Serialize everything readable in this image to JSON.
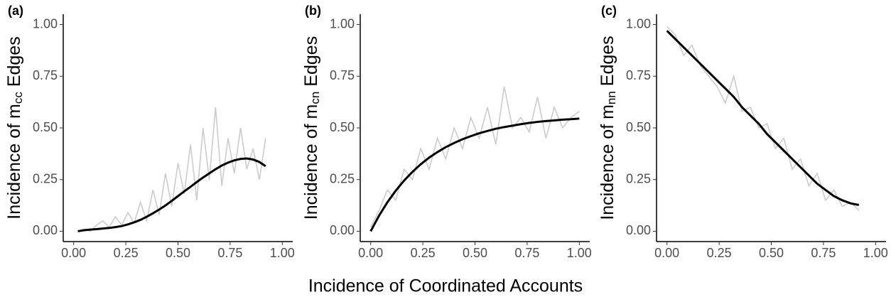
{
  "xlabel": "Incidence of Coordinated Accounts",
  "chart_data": [
    {
      "type": "line",
      "tag": "(a)",
      "ylabel": [
        "Incidence of m",
        "cc",
        " Edges"
      ],
      "xlim": [
        -0.05,
        1.05
      ],
      "ylim": [
        -0.05,
        1.05
      ],
      "xticks": [
        {
          "value": 0,
          "label": "0.00"
        },
        0.25,
        {
          "value": 0.5,
          "label": "0.50"
        },
        0.75,
        {
          "value": 1,
          "label": "1.00"
        }
      ],
      "yticks": [
        {
          "value": 0,
          "label": "0.00"
        },
        0.25,
        {
          "value": 0.5,
          "label": "0.50"
        },
        0.75,
        {
          "value": 1,
          "label": "1.00"
        }
      ],
      "x": [
        0.02,
        0.05,
        0.08,
        0.11,
        0.14,
        0.17,
        0.2,
        0.23,
        0.26,
        0.29,
        0.32,
        0.35,
        0.38,
        0.41,
        0.44,
        0.47,
        0.5,
        0.53,
        0.56,
        0.59,
        0.62,
        0.65,
        0.68,
        0.71,
        0.74,
        0.77,
        0.8,
        0.83,
        0.86,
        0.89,
        0.92
      ],
      "series": [
        {
          "color": "#cccccc",
          "values": [
            0,
            0.01,
            0,
            0.03,
            0.05,
            0.02,
            0.07,
            0.03,
            0.09,
            0.04,
            0.14,
            0.05,
            0.2,
            0.08,
            0.28,
            0.12,
            0.33,
            0.18,
            0.42,
            0.15,
            0.5,
            0.25,
            0.6,
            0.22,
            0.45,
            0.28,
            0.5,
            0.3,
            0.4,
            0.25,
            0.45
          ]
        },
        {
          "color": "#000000",
          "values": [
            0,
            0.005,
            0.008,
            0.01,
            0.013,
            0.016,
            0.02,
            0.025,
            0.033,
            0.043,
            0.055,
            0.07,
            0.087,
            0.105,
            0.125,
            0.147,
            0.17,
            0.193,
            0.215,
            0.238,
            0.26,
            0.28,
            0.3,
            0.318,
            0.332,
            0.343,
            0.35,
            0.352,
            0.347,
            0.335,
            0.315
          ]
        }
      ]
    },
    {
      "type": "line",
      "tag": "(b)",
      "ylabel": [
        "Incidence of m",
        "cn",
        " Edges"
      ],
      "xlim": [
        -0.05,
        1.05
      ],
      "ylim": [
        -0.05,
        1.05
      ],
      "xticks": [
        {
          "value": 0,
          "label": "0.00"
        },
        0.25,
        {
          "value": 0.5,
          "label": "0.50"
        },
        0.75,
        {
          "value": 1,
          "label": "1.00"
        }
      ],
      "yticks": [
        {
          "value": 0,
          "label": "0.00"
        },
        0.25,
        {
          "value": 0.5,
          "label": "0.50"
        },
        0.75,
        {
          "value": 1,
          "label": "1.00"
        }
      ],
      "x": [
        0,
        0.04,
        0.08,
        0.12,
        0.16,
        0.2,
        0.24,
        0.28,
        0.32,
        0.36,
        0.4,
        0.44,
        0.48,
        0.52,
        0.56,
        0.6,
        0.64,
        0.68,
        0.72,
        0.76,
        0.8,
        0.84,
        0.88,
        0.92,
        0.96,
        1
      ],
      "series": [
        {
          "color": "#cccccc",
          "values": [
            0.02,
            0.1,
            0.2,
            0.15,
            0.3,
            0.25,
            0.4,
            0.3,
            0.45,
            0.35,
            0.5,
            0.4,
            0.55,
            0.45,
            0.6,
            0.42,
            0.7,
            0.5,
            0.55,
            0.48,
            0.65,
            0.45,
            0.6,
            0.5,
            0.55,
            0.58
          ]
        },
        {
          "color": "#000000",
          "values": [
            0,
            0.075,
            0.14,
            0.196,
            0.245,
            0.287,
            0.324,
            0.356,
            0.383,
            0.407,
            0.427,
            0.445,
            0.46,
            0.474,
            0.485,
            0.496,
            0.504,
            0.511,
            0.518,
            0.524,
            0.529,
            0.533,
            0.536,
            0.54,
            0.542,
            0.545
          ]
        }
      ]
    },
    {
      "type": "line",
      "tag": "(c)",
      "ylabel": [
        "Incidence of m",
        "nn",
        " Edges"
      ],
      "xlim": [
        -0.05,
        1.05
      ],
      "ylim": [
        -0.05,
        1.05
      ],
      "xticks": [
        {
          "value": 0,
          "label": "0.00"
        },
        0.25,
        {
          "value": 0.5,
          "label": "0.50"
        },
        0.75,
        {
          "value": 1,
          "label": "1.00"
        }
      ],
      "yticks": [
        {
          "value": 0,
          "label": "0.00"
        },
        0.25,
        {
          "value": 0.5,
          "label": "0.50"
        },
        0.75,
        {
          "value": 1,
          "label": "1.00"
        }
      ],
      "x": [
        0,
        0.04,
        0.08,
        0.12,
        0.16,
        0.2,
        0.24,
        0.28,
        0.32,
        0.36,
        0.4,
        0.44,
        0.48,
        0.52,
        0.56,
        0.6,
        0.64,
        0.68,
        0.72,
        0.76,
        0.8,
        0.84,
        0.88,
        0.92
      ],
      "series": [
        {
          "color": "#cccccc",
          "values": [
            0.99,
            0.95,
            0.85,
            0.9,
            0.8,
            0.75,
            0.7,
            0.62,
            0.75,
            0.58,
            0.6,
            0.5,
            0.52,
            0.4,
            0.45,
            0.3,
            0.35,
            0.22,
            0.28,
            0.15,
            0.2,
            0.12,
            0.14,
            0.1
          ]
        },
        {
          "color": "#000000",
          "values": [
            0.97,
            0.93,
            0.89,
            0.85,
            0.81,
            0.77,
            0.73,
            0.69,
            0.65,
            0.6,
            0.56,
            0.52,
            0.47,
            0.43,
            0.39,
            0.35,
            0.31,
            0.27,
            0.23,
            0.2,
            0.17,
            0.15,
            0.135,
            0.127
          ]
        }
      ]
    }
  ]
}
